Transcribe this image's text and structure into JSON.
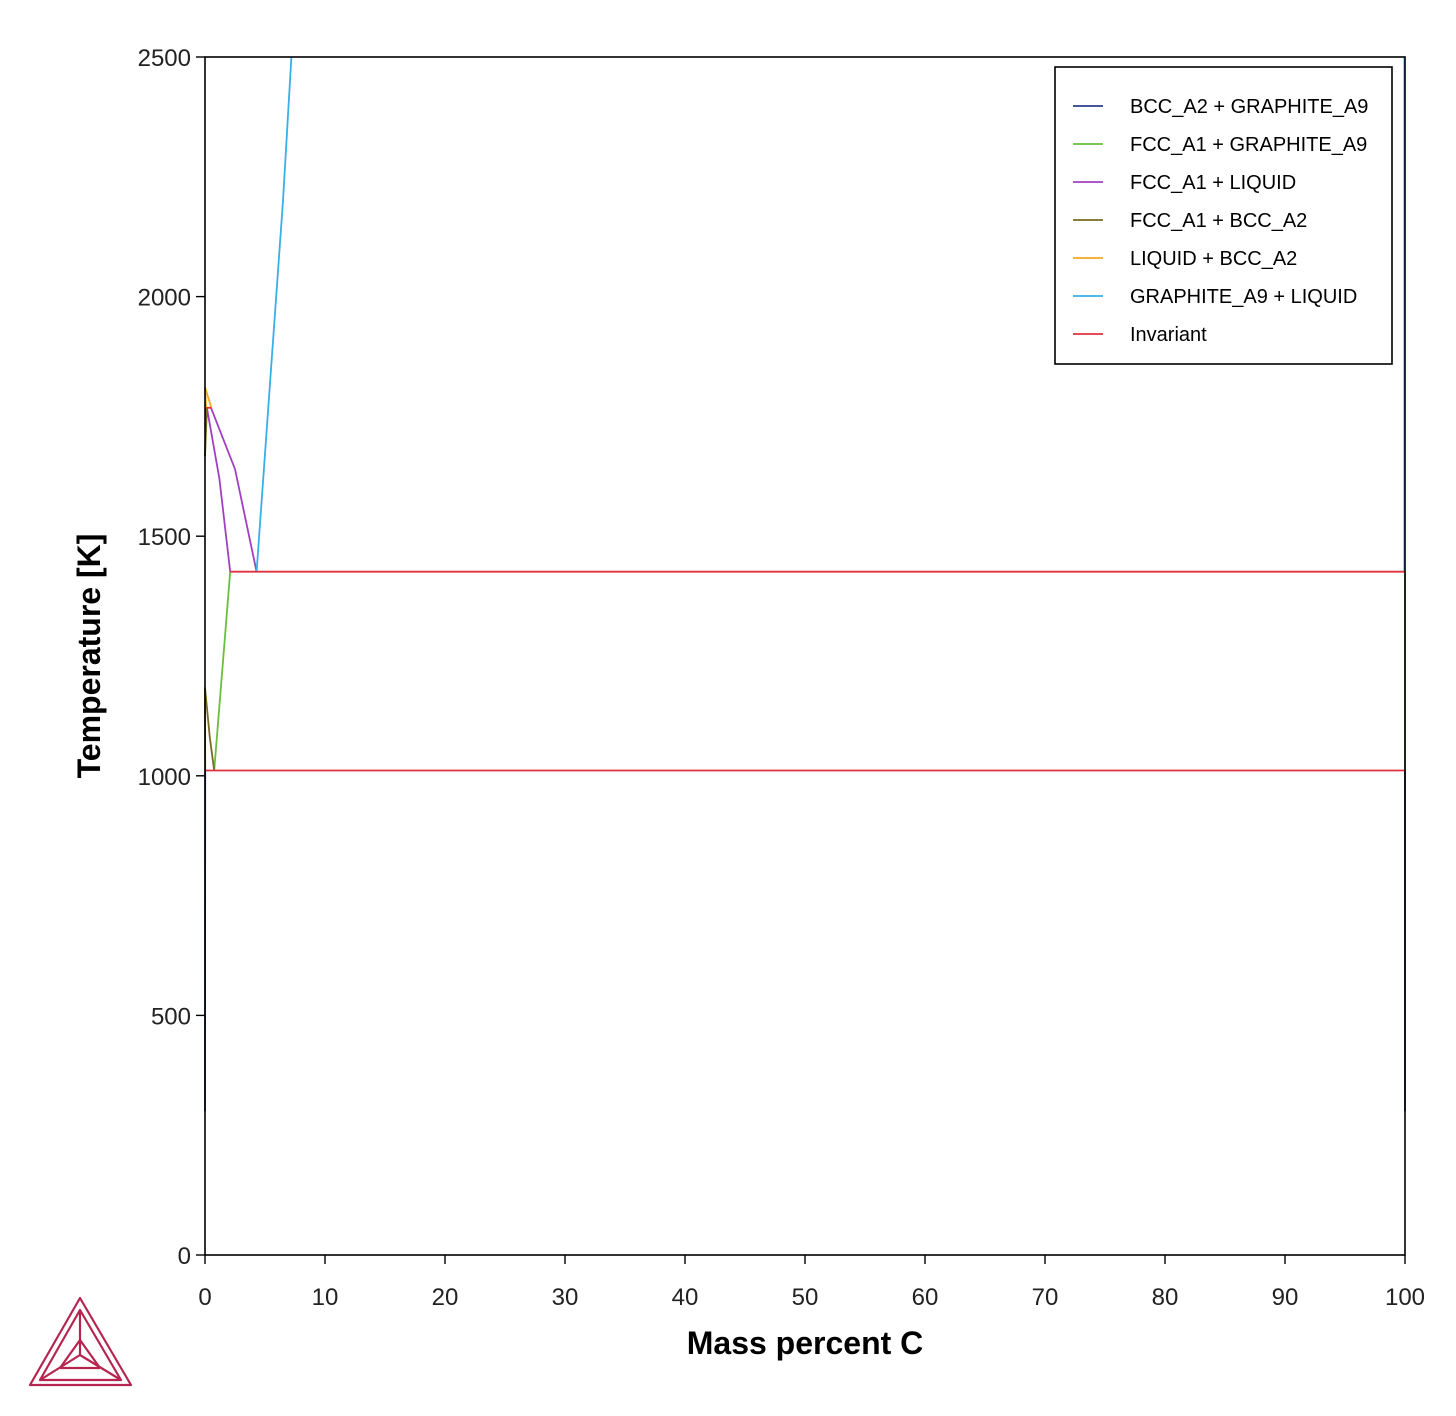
{
  "chart_data": {
    "type": "line",
    "xlabel": "Mass percent C",
    "ylabel": "Temperature [K]",
    "xlim": [
      0,
      100
    ],
    "ylim": [
      0,
      2500
    ],
    "xticks": [
      0,
      10,
      20,
      30,
      40,
      50,
      60,
      70,
      80,
      90,
      100
    ],
    "yticks": [
      0,
      500,
      1000,
      1500,
      2000,
      2500
    ],
    "grid": false,
    "legend_position": "top-right",
    "series": [
      {
        "name": "BCC_A2 + GRAPHITE_A9",
        "color": "#2c3e8c",
        "segments": [
          [
            [
              0.0,
              300
            ],
            [
              0.005,
              700
            ],
            [
              0.02,
              1011
            ]
          ],
          [
            [
              100,
              300
            ],
            [
              100,
              1011
            ]
          ]
        ]
      },
      {
        "name": "FCC_A1 + GRAPHITE_A9",
        "color": "#6abf3c",
        "segments": [
          [
            [
              0.77,
              1011
            ],
            [
              2.1,
              1426
            ]
          ],
          [
            [
              100,
              1011
            ],
            [
              100,
              1426
            ]
          ]
        ]
      },
      {
        "name": "FCC_A1 + LIQUID",
        "color": "#a040c0",
        "segments": [
          [
            [
              0.16,
              1768
            ],
            [
              1.2,
              1620
            ],
            [
              2.1,
              1426
            ]
          ],
          [
            [
              0.5,
              1768
            ],
            [
              2.5,
              1640
            ],
            [
              4.3,
              1426
            ]
          ]
        ]
      },
      {
        "name": "FCC_A1 + BCC_A2",
        "color": "#7a6a20",
        "segments": [
          [
            [
              0.0,
              1184
            ],
            [
              0.4,
              1080
            ],
            [
              0.77,
              1011
            ]
          ],
          [
            [
              0.0,
              1180
            ],
            [
              0.01,
              1100
            ],
            [
              0.02,
              1011
            ]
          ],
          [
            [
              0.0,
              1667
            ],
            [
              0.09,
              1768
            ]
          ],
          [
            [
              0.0,
              1667
            ],
            [
              0.16,
              1768
            ]
          ]
        ]
      },
      {
        "name": "LIQUID + BCC_A2",
        "color": "#f5a623",
        "segments": [
          [
            [
              0.0,
              1811
            ],
            [
              0.53,
              1768
            ]
          ],
          [
            [
              0.0,
              1811
            ],
            [
              0.09,
              1768
            ]
          ]
        ]
      },
      {
        "name": "GRAPHITE_A9 + LIQUID",
        "color": "#35b0e8",
        "segments": [
          [
            [
              4.3,
              1426
            ],
            [
              6.5,
              2200
            ],
            [
              7.2,
              2500
            ]
          ],
          [
            [
              99.95,
              1426
            ],
            [
              99.95,
              2500
            ]
          ]
        ]
      },
      {
        "name": "Invariant",
        "color": "#e03040",
        "segments": [
          [
            [
              2.1,
              1426
            ],
            [
              100,
              1426
            ]
          ],
          [
            [
              0.02,
              1011
            ],
            [
              100,
              1011
            ]
          ],
          [
            [
              0.09,
              1768
            ],
            [
              0.53,
              1768
            ]
          ]
        ]
      }
    ]
  }
}
